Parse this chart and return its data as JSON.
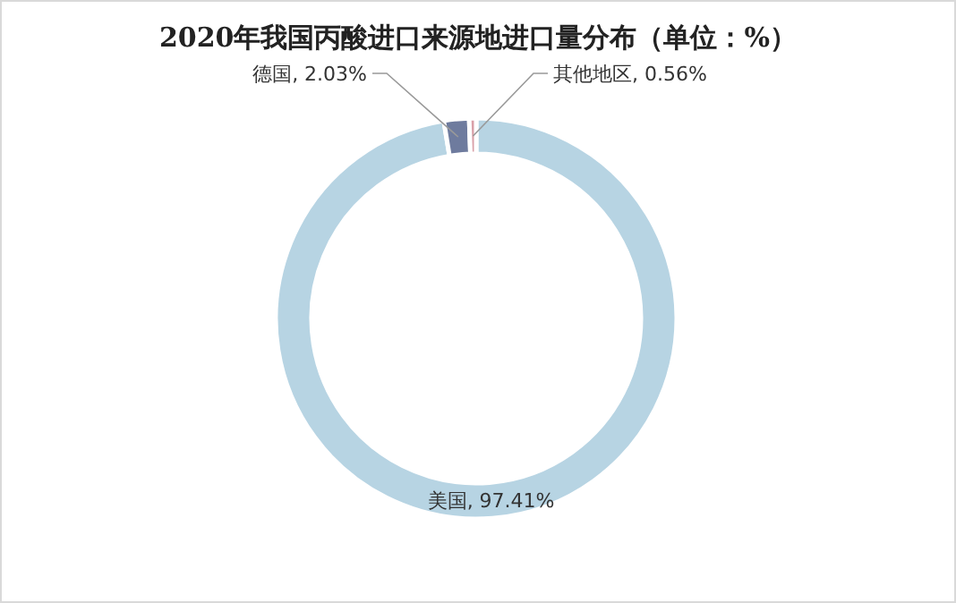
{
  "chart_data": {
    "type": "donut",
    "title": "2020年我国丙酸进口来源地进口量分布（单位：%）",
    "categories": [
      "美国",
      "德国",
      "其他地区"
    ],
    "values": [
      97.41,
      2.03,
      0.56
    ],
    "colors": [
      "#b7d4e3",
      "#6e7b9e",
      "#d9a0a8"
    ],
    "value_labels": [
      "97.41%",
      "2.03%",
      "0.56%"
    ],
    "legend": false
  }
}
